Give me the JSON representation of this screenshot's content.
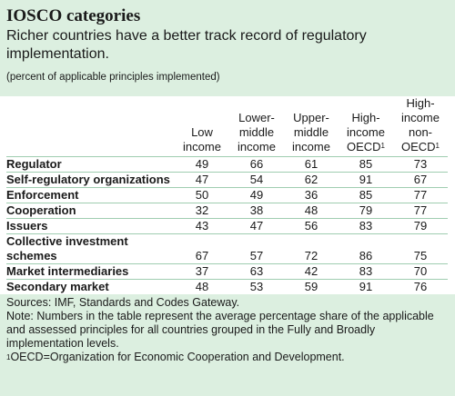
{
  "title": "IOSCO categories",
  "subtitle": "Richer countries have a better track record of regulatory implementation.",
  "unit": "(percent of applicable principles implemented)",
  "columns": {
    "low": [
      "Low",
      "income"
    ],
    "lower_middle": [
      "Lower-",
      "middle",
      "income"
    ],
    "upper_middle": [
      "Upper-",
      "middle",
      "income"
    ],
    "high_oecd": [
      "High-",
      "income",
      "OECD"
    ],
    "high_non_oecd": [
      "High-",
      "income",
      "non-",
      "OECD"
    ],
    "footnote_mark": "1"
  },
  "rows": [
    {
      "label": "Regulator",
      "values": [
        "49",
        "66",
        "61",
        "85",
        "73"
      ]
    },
    {
      "label": "Self-regulatory organizations",
      "values": [
        "47",
        "54",
        "62",
        "91",
        "67"
      ]
    },
    {
      "label": "Enforcement",
      "values": [
        "50",
        "49",
        "36",
        "85",
        "77"
      ]
    },
    {
      "label": "Cooperation",
      "values": [
        "32",
        "38",
        "48",
        "79",
        "77"
      ]
    },
    {
      "label": "Issuers",
      "values": [
        "43",
        "47",
        "56",
        "83",
        "79"
      ]
    },
    {
      "label_line1": "Collective investment",
      "label_line2": "schemes",
      "values": [
        "67",
        "57",
        "72",
        "86",
        "75"
      ]
    },
    {
      "label": "Market intermediaries",
      "values": [
        "37",
        "63",
        "42",
        "83",
        "70"
      ]
    },
    {
      "label": "Secondary market",
      "values": [
        "48",
        "53",
        "59",
        "91",
        "76"
      ]
    }
  ],
  "notes": {
    "sources": "Sources: IMF, Standards and Codes Gateway.",
    "note": "Note: Numbers in the table represent the average percentage share of the applicable and assessed principles for all countries grouped in the Fully and Broadly implementation levels.",
    "footnote_mark": "1",
    "footnote": "OECD=Organization for Economic Cooperation and Development."
  }
}
